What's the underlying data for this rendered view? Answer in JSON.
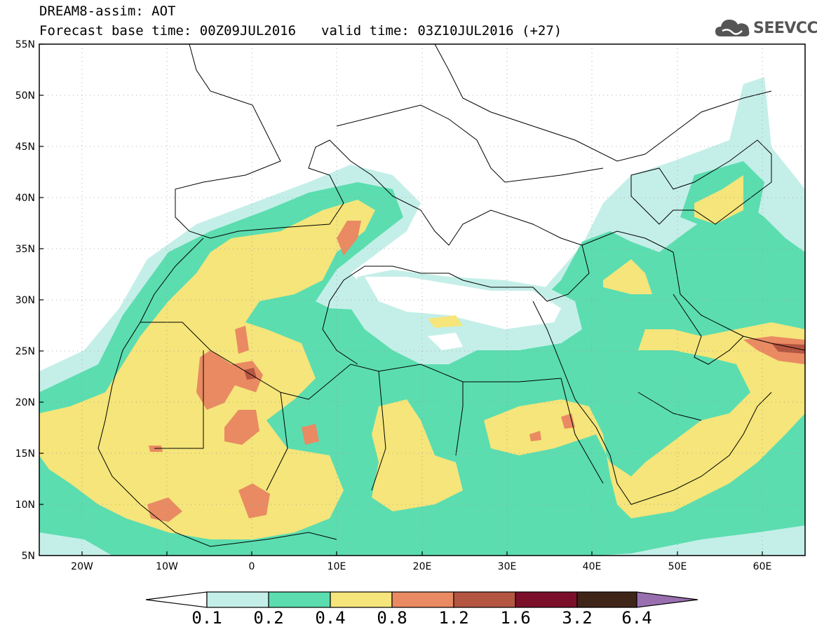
{
  "header": {
    "line1": "DREAM8-assim: AOT",
    "base_time": "Forecast base time: 00Z09JUL2016",
    "valid_time": "valid time: 03Z10JUL2016 (+27)",
    "logo_text": "SEEVCCC",
    "logo_icon": "cloud-icon"
  },
  "axes": {
    "lat_labels": [
      "55N",
      "50N",
      "45N",
      "40N",
      "35N",
      "30N",
      "25N",
      "20N",
      "15N",
      "10N",
      "5N"
    ],
    "lon_labels": [
      "20W",
      "10W",
      "0",
      "10E",
      "20E",
      "30E",
      "40E",
      "50E",
      "60E"
    ],
    "lat_range": [
      5,
      55
    ],
    "lon_range": [
      -25,
      65
    ],
    "grid": "dotted"
  },
  "colorbar": {
    "labels": [
      "0.1",
      "0.2",
      "0.4",
      "0.8",
      "1.2",
      "1.6",
      "3.2",
      "6.4"
    ],
    "colors": [
      "#ffffff",
      "#c4efe8",
      "#5bddb0",
      "#f5e57a",
      "#e98a63",
      "#b45541",
      "#7b0f2a",
      "#3f2518",
      "#9a6fb0"
    ]
  },
  "colors": {
    "level_0_1": "#c4efe8",
    "level_0_2": "#5bddb0",
    "level_0_4": "#f5e57a",
    "level_0_8": "#e98a63",
    "level_1_2": "#b45541",
    "land_border": "#000000"
  }
}
